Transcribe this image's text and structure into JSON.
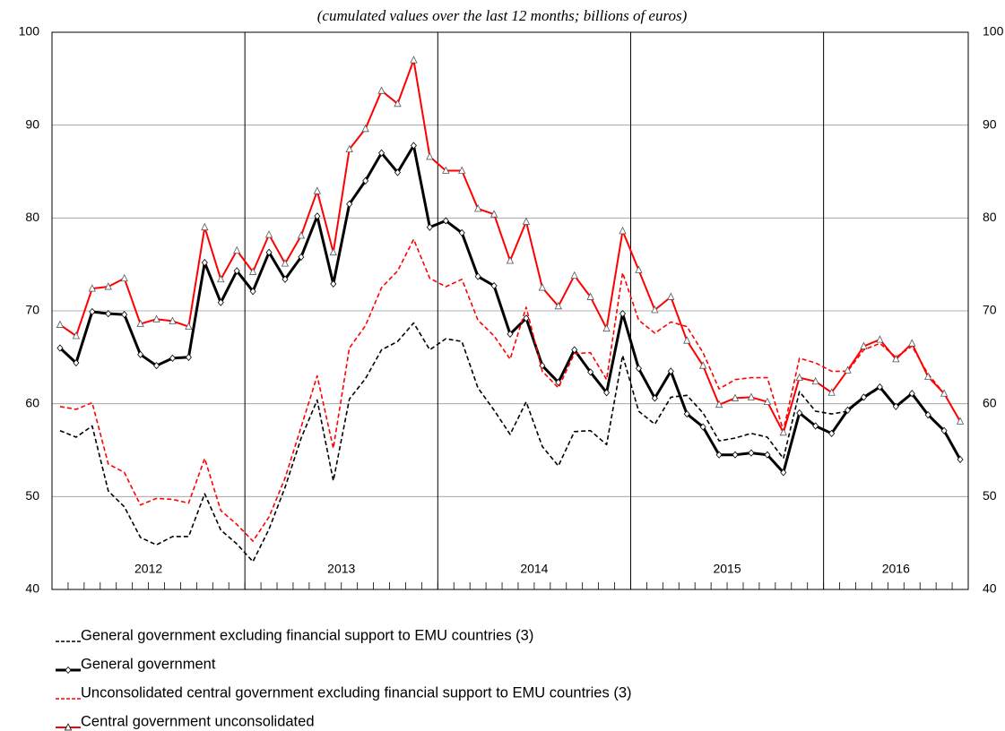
{
  "chart_data": {
    "type": "line",
    "subtitle": "(cumulated values over the last 12 months; billions of euros)",
    "categories": [
      "2012",
      null,
      null,
      null,
      null,
      null,
      null,
      null,
      null,
      null,
      null,
      null,
      "2013",
      null,
      null,
      null,
      null,
      null,
      null,
      null,
      null,
      null,
      null,
      null,
      "2014",
      null,
      null,
      null,
      null,
      null,
      null,
      null,
      null,
      null,
      null,
      null,
      "2015",
      null,
      null,
      null,
      null,
      null,
      null,
      null,
      null,
      null,
      null,
      null,
      "2016",
      null,
      null,
      null,
      null,
      null,
      null,
      null,
      null
    ],
    "ylim": [
      40,
      100
    ],
    "yticks": [
      40,
      50,
      60,
      70,
      80,
      90,
      100
    ],
    "grid": true,
    "series": [
      {
        "name": "General government excluding financial support to EMU countries (3)",
        "color": "#000000",
        "style": "dashed",
        "values": [
          57.1,
          56.4,
          57.6,
          50.6,
          48.9,
          45.6,
          44.8,
          45.7,
          45.7,
          50.3,
          46.4,
          44.9,
          43.0,
          46.5,
          51.0,
          56.3,
          60.4,
          51.7,
          60.5,
          62.7,
          65.8,
          66.7,
          68.7,
          65.8,
          67.0,
          66.7,
          61.7,
          59.3,
          56.7,
          60.2,
          55.4,
          53.3,
          57.0,
          57.1,
          55.6,
          65.2,
          59.2,
          57.8,
          60.7,
          60.9,
          59.0,
          56.0,
          56.3,
          56.8,
          56.4,
          54.1,
          61.3,
          59.2,
          58.9,
          59.2,
          60.6,
          61.7,
          59.7,
          61.1,
          58.8,
          57.1,
          54.0
        ]
      },
      {
        "name": "General government",
        "color": "#000000",
        "style": "solid",
        "marker": "diamond",
        "values": [
          66.0,
          64.4,
          69.9,
          69.7,
          69.6,
          65.3,
          64.1,
          64.9,
          65.0,
          75.2,
          70.9,
          74.3,
          72.1,
          76.3,
          73.4,
          75.8,
          80.2,
          72.9,
          81.5,
          84.0,
          87.0,
          84.9,
          87.8,
          79.0,
          79.7,
          78.4,
          73.7,
          72.7,
          67.5,
          69.2,
          64.1,
          62.3,
          65.8,
          63.4,
          61.2,
          69.7,
          63.8,
          60.6,
          63.5,
          58.9,
          57.5,
          54.5,
          54.5,
          54.7,
          54.5,
          52.6,
          59.0,
          57.6,
          56.8,
          59.3,
          60.7,
          61.8,
          59.7,
          61.1,
          58.8,
          57.1,
          54.0
        ]
      },
      {
        "name": "Unconsolidated central government excluding financial support to EMU countries (3)",
        "color": "#ff0000",
        "style": "dashed",
        "values": [
          59.7,
          59.4,
          60.1,
          53.5,
          52.6,
          49.1,
          49.8,
          49.7,
          49.3,
          54.1,
          48.5,
          47.0,
          45.2,
          47.8,
          52.0,
          57.5,
          63.0,
          55.2,
          66.0,
          68.4,
          72.5,
          74.3,
          77.7,
          73.5,
          72.6,
          73.4,
          69.0,
          67.3,
          64.8,
          70.4,
          63.5,
          61.7,
          65.4,
          65.5,
          62.6,
          74.1,
          69.0,
          67.6,
          68.8,
          68.3,
          65.5,
          61.6,
          62.6,
          62.8,
          62.8,
          57.1,
          64.9,
          64.4,
          63.5,
          63.5,
          65.8,
          66.5,
          65.0,
          66.2,
          63.2,
          61.1,
          58.1
        ]
      },
      {
        "name": "Central government unconsolidated",
        "color": "#ff0000",
        "style": "solid",
        "marker": "triangle",
        "values": [
          68.5,
          67.3,
          72.4,
          72.6,
          73.5,
          68.6,
          69.1,
          68.9,
          68.3,
          79.0,
          73.4,
          76.5,
          74.2,
          78.2,
          75.1,
          78.1,
          82.9,
          76.3,
          87.4,
          89.6,
          93.7,
          92.3,
          97.0,
          86.6,
          85.1,
          85.1,
          81.0,
          80.4,
          75.4,
          79.6,
          72.5,
          70.5,
          73.8,
          71.5,
          68.1,
          78.6,
          74.4,
          70.1,
          71.5,
          66.8,
          64.1,
          59.9,
          60.6,
          60.7,
          60.2,
          56.9,
          62.8,
          62.4,
          61.2,
          63.6,
          66.2,
          66.9,
          64.8,
          66.5,
          62.9,
          61.1,
          58.1
        ]
      }
    ]
  }
}
